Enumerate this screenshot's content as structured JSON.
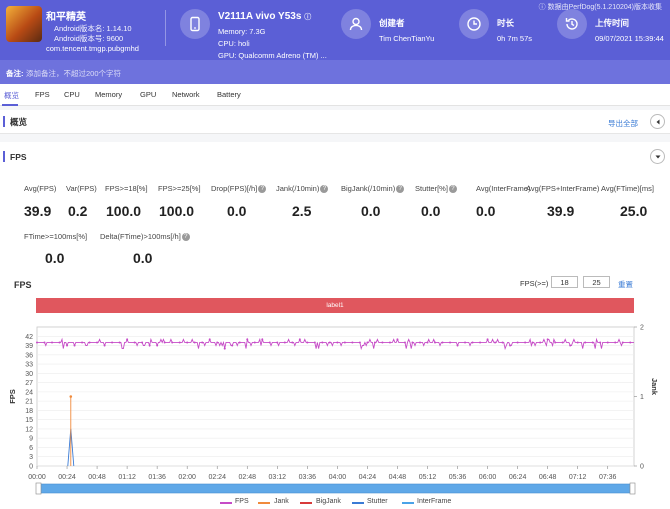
{
  "app": {
    "name": "和平精英",
    "version_line": "Android版本名: 1.14.10",
    "version_code_line": "Android版本号: 9600",
    "package": "com.tencent.tmgp.pubgmhd"
  },
  "device": {
    "name": "V2111A vivo Y53s",
    "memory": "Memory: 7.3G",
    "cpu": "CPU: holi",
    "gpu": "GPU: Qualcomm Adreno (TM) ..."
  },
  "creator": {
    "title": "创建者",
    "value": "Tim ChenTianYu"
  },
  "duration": {
    "title": "时长",
    "value": "0h 7m 57s"
  },
  "upload": {
    "title": "上传时间",
    "value": "09/07/2021 15:39:44"
  },
  "perfdog_note": "ⓘ 数据由PerfDog(5.1.210204)版本收集",
  "remark": {
    "label": "备注:",
    "placeholder": "添加备注，不超过200个字符"
  },
  "tabs": [
    "概览",
    "FPS",
    "CPU",
    "Memory",
    "GPU",
    "Network",
    "Battery"
  ],
  "overview": {
    "title": "概览",
    "export_label": "导出全部"
  },
  "fps_section": {
    "title": "FPS",
    "metrics_row1": [
      {
        "label": "Avg(FPS)",
        "value": "39.9",
        "help": false
      },
      {
        "label": "Var(FPS)",
        "value": "0.2",
        "help": false
      },
      {
        "label": "FPS>=18[%]",
        "value": "100.0",
        "help": false
      },
      {
        "label": "FPS>=25[%]",
        "value": "100.0",
        "help": false
      },
      {
        "label": "Drop(FPS)[/h]",
        "value": "0.0",
        "help": true
      },
      {
        "label": "Jank(/10min)",
        "value": "2.5",
        "help": true
      },
      {
        "label": "BigJank(/10min)",
        "value": "0.0",
        "help": true
      },
      {
        "label": "Stutter[%]",
        "value": "0.0",
        "help": true
      },
      {
        "label": "Avg(InterFrame)",
        "value": "0.0",
        "help": false
      },
      {
        "label": "Avg(FPS+InterFrame)",
        "value": "39.9",
        "help": false
      },
      {
        "label": "Avg(FTime)[ms]",
        "value": "25.0",
        "help": false
      }
    ],
    "metrics_row2": [
      {
        "label": "FTime>=100ms[%]",
        "value": "0.0",
        "help": false
      },
      {
        "label": "Delta(FTime)>100ms[/h]",
        "value": "0.0",
        "help": true
      }
    ]
  },
  "chart_panel": {
    "title": "FPS",
    "threshold_label": "FPS(>=)",
    "threshold_1": "18",
    "threshold_2": "25",
    "reset_label": "重置",
    "label_band": "label1"
  },
  "chart_data": {
    "type": "line",
    "title": "",
    "ylabel": "FPS",
    "y2label": "Jank",
    "ylim": [
      0,
      45
    ],
    "y2lim": [
      0,
      2
    ],
    "yticks": [
      "42",
      "39",
      "36",
      "33",
      "30",
      "27",
      "24",
      "21",
      "18",
      "15",
      "12",
      "9",
      "6",
      "3",
      "0"
    ],
    "y2ticks": [
      "2",
      "1",
      "0"
    ],
    "xticks": [
      "00:00",
      "00:24",
      "00:48",
      "01:12",
      "01:36",
      "02:00",
      "02:24",
      "02:48",
      "03:12",
      "03:36",
      "04:00",
      "04:24",
      "04:48",
      "05:12",
      "05:36",
      "06:00",
      "06:24",
      "06:48",
      "07:12",
      "07:36"
    ],
    "x_seconds_max": 477,
    "series": [
      {
        "name": "FPS",
        "color": "#c64bc7",
        "base": 40,
        "jitter": 1
      },
      {
        "name": "Jank",
        "color": "#f08a3c",
        "events": [
          {
            "t": 27,
            "value": 1
          }
        ]
      },
      {
        "name": "BigJank",
        "color": "#d83a3a",
        "events": []
      },
      {
        "name": "Stutter",
        "color": "#3a7bd5",
        "events": [
          {
            "t": 27,
            "value": 12
          }
        ]
      },
      {
        "name": "InterFrame",
        "color": "#4aa3e8",
        "events": []
      }
    ],
    "grid": true,
    "legend": "bottom"
  },
  "colors": {
    "accent": "#5b5fd6",
    "label_band": "#e0575e"
  }
}
